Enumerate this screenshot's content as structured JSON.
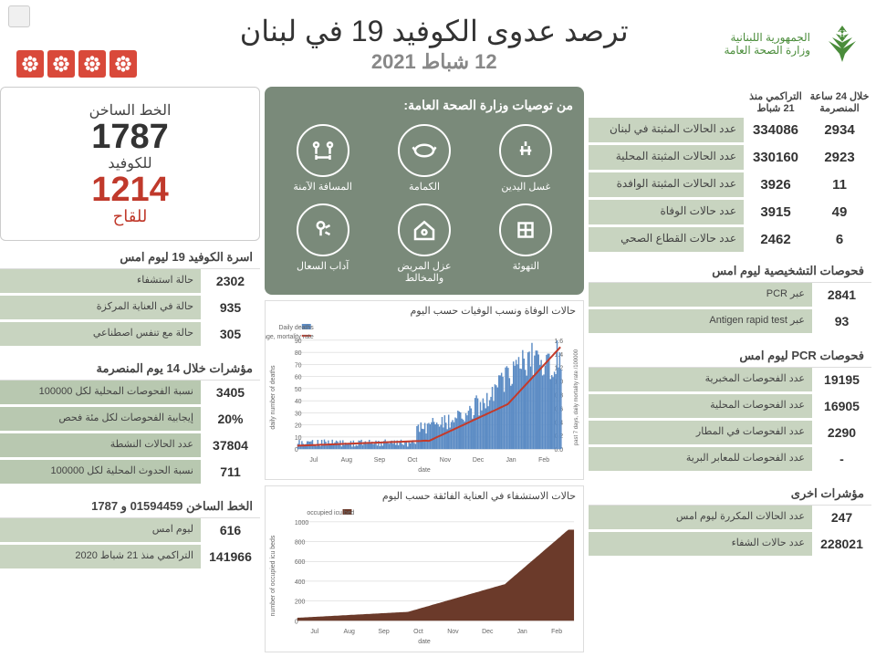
{
  "header": {
    "org_line1": "الجمهورية اللبنانية",
    "org_line2": "وزارة الصحة العامة",
    "title": "ترصد عدوى الكوفيد 19 في لبنان",
    "date": "12 شباط 2021"
  },
  "main_stats": {
    "col1_hdr": "خلال 24 ساعة المنصرمة",
    "col2_hdr": "التراكمي منذ 21 شباط",
    "rows": [
      {
        "v24": "2934",
        "vtot": "334086",
        "label": "عدد الحالات المثبتة في لبنان"
      },
      {
        "v24": "2923",
        "vtot": "330160",
        "label": "عدد الحالات المثبتة المحلية"
      },
      {
        "v24": "11",
        "vtot": "3926",
        "label": "عدد الحالات المثبتة الوافدة"
      },
      {
        "v24": "49",
        "vtot": "3915",
        "label": "عدد حالات الوفاة"
      },
      {
        "v24": "6",
        "vtot": "2462",
        "label": "عدد حالات القطاع الصحي"
      }
    ]
  },
  "diagnostic": {
    "title": "فحوصات التشخيصية ليوم امس",
    "rows": [
      {
        "num": "2841",
        "label": "عبر PCR"
      },
      {
        "num": "93",
        "label": "عبر Antigen rapid test"
      }
    ]
  },
  "pcr": {
    "title": "فحوصات PCR ليوم امس",
    "rows": [
      {
        "num": "19195",
        "label": "عدد الفحوصات المخبرية"
      },
      {
        "num": "16905",
        "label": "عدد الفحوصات المحلية"
      },
      {
        "num": "2290",
        "label": "عدد الفحوصات في المطار"
      },
      {
        "num": "-",
        "label": "عدد الفحوصات للمعابر البرية"
      }
    ]
  },
  "other": {
    "title": "مؤشرات اخرى",
    "rows": [
      {
        "num": "247",
        "label": "عدد الحالات المكررة ليوم امس"
      },
      {
        "num": "228021",
        "label": "عدد حالات الشفاء"
      }
    ]
  },
  "recommendations": {
    "title": "من توصيات وزارة الصحة العامة:",
    "items": [
      {
        "label": "غسل اليدين"
      },
      {
        "label": "الكمامة"
      },
      {
        "label": "المسافة الآمنة"
      },
      {
        "label": "التهوئة"
      },
      {
        "label": "عزل المريض والمخالط"
      },
      {
        "label": "آداب السعال"
      }
    ]
  },
  "hotline": {
    "t1": "الخط الساخن",
    "n1": "1787",
    "t1b": "للكوفيد",
    "n2": "1214",
    "t2": "للقاح"
  },
  "beds": {
    "title": "اسرة الكوفيد 19 ليوم امس",
    "rows": [
      {
        "num": "2302",
        "label": "حالة استشفاء"
      },
      {
        "num": "935",
        "label": "حالة في العناية المركزة"
      },
      {
        "num": "305",
        "label": "حالة مع تنفس اصطناعي"
      }
    ]
  },
  "indicators14": {
    "title": "مؤشرات خلال 14 يوم المنصرمة",
    "rows": [
      {
        "num": "3405",
        "label": "نسبة الفحوصات المحلية لكل 100000"
      },
      {
        "num": "20%",
        "label": "إيجابية الفحوصات لكل مئة فحص"
      },
      {
        "num": "37804",
        "label": "عدد الحالات النشطة"
      },
      {
        "num": "711",
        "label": "نسبة الحدوث المحلية لكل 100000"
      }
    ]
  },
  "hotline_stats": {
    "title": "الخط الساخن 01594459 و 1787",
    "rows": [
      {
        "num": "616",
        "label": "ليوم امس"
      },
      {
        "num": "141966",
        "label": "التراكمي منذ 21 شباط 2020"
      }
    ]
  },
  "chart1": {
    "title": "حالات الوفاة ونسب الوفيات حسب اليوم",
    "legend1": "Daily deaths",
    "legend2": "Past 7 days, daily average, mortality rate",
    "yleft_label": "daily number of deaths",
    "yright_label": "past 7 days, daily mortality rate /100000",
    "xlabel": "date",
    "ylim": [
      0,
      90
    ],
    "ytick_step": 10,
    "yright_lim": [
      0,
      1.6
    ],
    "yright_step": 0.2,
    "months": [
      "Jul",
      "Aug",
      "Sep",
      "Oct",
      "Nov",
      "Dec",
      "Jan",
      "Feb"
    ],
    "bar_color": "#5b8bc4",
    "line_color": "#c43a2a",
    "background": "#ffffff",
    "grid_color": "#cccccc"
  },
  "chart2": {
    "title": "حالات الاستشفاء في العناية الفائقة حسب اليوم",
    "legend": "occupied icu bed",
    "ylabel": "number of occupied icu beds",
    "xlabel": "date",
    "ylim": [
      0,
      1000
    ],
    "ytick_step": 200,
    "area_color": "#6b3a2a",
    "background": "#ffffff",
    "grid_color": "#cccccc",
    "months": [
      "Jul",
      "Aug",
      "Sep",
      "Oct",
      "Nov",
      "Dec",
      "Jan",
      "Feb"
    ]
  },
  "colors": {
    "green_cell": "#c8d4c0",
    "rec_bg": "#7a8a7a",
    "red": "#c0392b"
  }
}
